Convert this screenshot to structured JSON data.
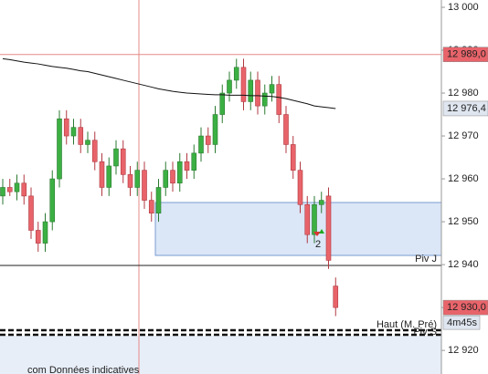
{
  "chart_data": {
    "type": "candlestick",
    "open": [
      12956,
      12958,
      12957,
      12959,
      12956,
      12948,
      12945,
      12950,
      12960,
      12974,
      12970,
      12972,
      12968,
      12969,
      12964,
      12958,
      12963,
      12967,
      12961,
      12958,
      12962,
      12955,
      12952,
      12958,
      12962,
      12959,
      12964,
      12962,
      12966,
      12970,
      12968,
      12975,
      12980,
      12983,
      12986,
      12978,
      12983,
      12977,
      12980,
      12982,
      12975,
      12968,
      12962,
      12954,
      12947,
      12954,
      12956,
      12935
    ],
    "high": [
      12960,
      12960,
      12961,
      12961,
      12958,
      12950,
      12952,
      12962,
      12976,
      12976,
      12974,
      12974,
      12971,
      12971,
      12966,
      12965,
      12969,
      12969,
      12963,
      12964,
      12964,
      12957,
      12960,
      12964,
      12964,
      12966,
      12966,
      12968,
      12972,
      12972,
      12977,
      12982,
      12985,
      12988,
      12988,
      12985,
      12985,
      12982,
      12984,
      12984,
      12977,
      12970,
      12964,
      12956,
      12956,
      12957,
      12958,
      12937
    ],
    "low": [
      12954,
      12956,
      12955,
      12954,
      12946,
      12943,
      12943,
      12948,
      12958,
      12968,
      12968,
      12966,
      12966,
      12962,
      12956,
      12956,
      12961,
      12959,
      12956,
      12956,
      12953,
      12950,
      12950,
      12956,
      12957,
      12957,
      12960,
      12960,
      12964,
      12966,
      12966,
      12973,
      12978,
      12981,
      12976,
      12976,
      12975,
      12975,
      12978,
      12973,
      12966,
      12960,
      12952,
      12945,
      12945,
      12952,
      12939,
      12928
    ],
    "close": [
      12958,
      12957,
      12959,
      12956,
      12948,
      12945,
      12950,
      12960,
      12974,
      12970,
      12972,
      12968,
      12969,
      12964,
      12958,
      12963,
      12967,
      12961,
      12958,
      12962,
      12955,
      12952,
      12958,
      12962,
      12959,
      12964,
      12962,
      12966,
      12970,
      12968,
      12975,
      12980,
      12983,
      12986,
      12978,
      12983,
      12977,
      12980,
      12982,
      12975,
      12968,
      12962,
      12954,
      12947,
      12954,
      12955,
      12941,
      12930
    ],
    "up_color": "#3cb043",
    "down_color": "#e8646a",
    "ma": {
      "color": "#111111",
      "values": [
        12988,
        12987.8,
        12987.5,
        12987.2,
        12987,
        12986.8,
        12986.5,
        12986.2,
        12986,
        12985.8,
        12985.5,
        12985.2,
        12985,
        12984.6,
        12984.2,
        12983.8,
        12983.4,
        12983,
        12982.6,
        12982.2,
        12981.8,
        12981.4,
        12981,
        12980.7,
        12980.4,
        12980.2,
        12980,
        12979.9,
        12979.8,
        12979.7,
        12979.6,
        12979.6,
        12979.5,
        12979.5,
        12979.5,
        12979.4,
        12979.4,
        12979.3,
        12979.2,
        12979,
        12978.7,
        12978.3,
        12977.9,
        12977.5,
        12977,
        12976.8,
        12976.6,
        12976.4
      ]
    },
    "ylim": [
      12914.5,
      13001.7
    ],
    "yticks": [
      {
        "value": 13000,
        "label": "13 000"
      },
      {
        "value": 12990,
        "label": "12 990"
      },
      {
        "value": 12980,
        "label": "12 980"
      },
      {
        "value": 12970,
        "label": "12 970"
      },
      {
        "value": 12960,
        "label": "12 960"
      },
      {
        "value": 12950,
        "label": "12 950"
      },
      {
        "value": 12940,
        "label": "12 940"
      },
      {
        "value": 12930,
        "label": "12 930"
      },
      {
        "value": 12920,
        "label": "12 920"
      }
    ],
    "price_tags": [
      {
        "value": 12989,
        "label": "12 989,0",
        "color": "#e8646a"
      },
      {
        "value": 12976.4,
        "label": "12 976,4",
        "color": "#dfe6f0"
      },
      {
        "value": 12930,
        "label": "12 930,0",
        "color": "#e8646a"
      }
    ],
    "countdown": "4m45s",
    "annotations": {
      "piv_j": "Piv J",
      "haut": "Haut (M. Pré)",
      "piv_s": "Piv S",
      "signal": "2"
    },
    "footer": "com  Données indicatives"
  }
}
